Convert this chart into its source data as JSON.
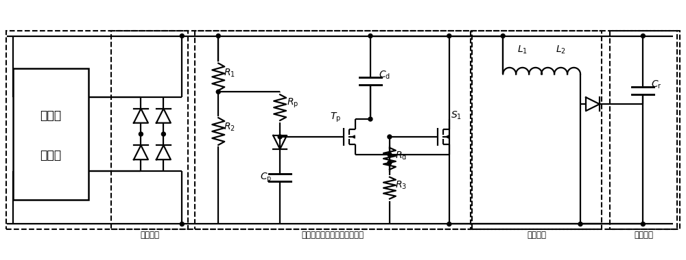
{
  "bg": "#ffffff",
  "lc": "#000000",
  "lw": 1.6,
  "fig_w": 10.0,
  "fig_h": 3.8,
  "dpi": 100,
  "src_label1": "脉冲型",
  "src_label2": "微能源",
  "lbl_R1": "$R_1$",
  "lbl_R2": "$R_2$",
  "lbl_Rp": "$R_{\\mathrm{p}}$",
  "lbl_Cp": "$C_{\\mathrm{p}}$",
  "lbl_Tp": "$T_{\\mathrm{p}}$",
  "lbl_Rd": "$R_{\\mathrm{d}}$",
  "lbl_R3": "$R_3$",
  "lbl_Cd": "$C_{\\mathrm{d}}$",
  "lbl_S1": "$S_1$",
  "lbl_L1": "$L_1$",
  "lbl_L2": "$L_2$",
  "lbl_Cr": "$C_{\\mathrm{r}}$",
  "lbl_box1": "整流电路",
  "lbl_box2": "基于无源峰值检测的开关电路",
  "lbl_box3": "降压电路",
  "lbl_box4": "储能模块"
}
